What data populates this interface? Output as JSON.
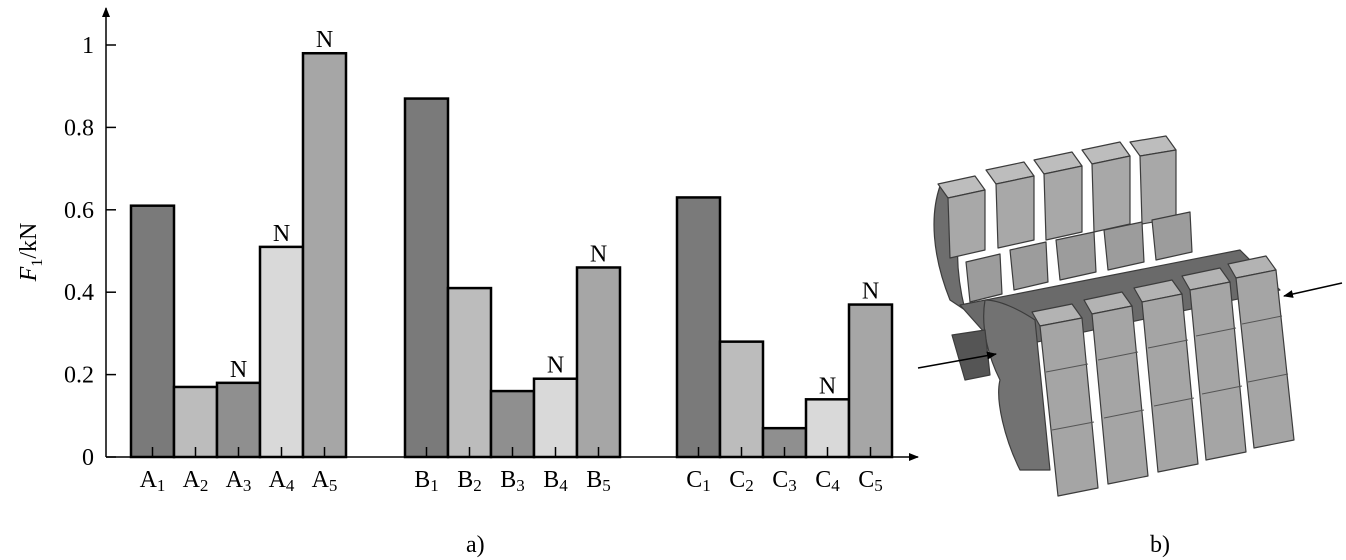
{
  "chart_data": {
    "type": "bar",
    "ylabel": {
      "main": "F",
      "sub": "1",
      "unit": "/kN"
    },
    "ylim": [
      0,
      1.0
    ],
    "yticks": [
      "0",
      "0.2",
      "0.4",
      "0.6",
      "0.8",
      "1"
    ],
    "grid": false,
    "groups": [
      {
        "bars": [
          {
            "label": "A",
            "sub": "1",
            "value": 0.61,
            "color": "#7a7a7a",
            "marker": ""
          },
          {
            "label": "A",
            "sub": "2",
            "value": 0.17,
            "color": "#bcbcbc",
            "marker": ""
          },
          {
            "label": "A",
            "sub": "3",
            "value": 0.18,
            "color": "#8f8f8f",
            "marker": "N"
          },
          {
            "label": "A",
            "sub": "4",
            "value": 0.51,
            "color": "#d9d9d9",
            "marker": "N"
          },
          {
            "label": "A",
            "sub": "5",
            "value": 0.98,
            "color": "#a6a6a6",
            "marker": "N"
          }
        ]
      },
      {
        "bars": [
          {
            "label": "B",
            "sub": "1",
            "value": 0.87,
            "color": "#7a7a7a",
            "marker": ""
          },
          {
            "label": "B",
            "sub": "2",
            "value": 0.41,
            "color": "#bcbcbc",
            "marker": ""
          },
          {
            "label": "B",
            "sub": "3",
            "value": 0.16,
            "color": "#8f8f8f",
            "marker": ""
          },
          {
            "label": "B",
            "sub": "4",
            "value": 0.19,
            "color": "#d9d9d9",
            "marker": "N"
          },
          {
            "label": "B",
            "sub": "5",
            "value": 0.46,
            "color": "#a6a6a6",
            "marker": "N"
          }
        ]
      },
      {
        "bars": [
          {
            "label": "C",
            "sub": "1",
            "value": 0.63,
            "color": "#7a7a7a",
            "marker": ""
          },
          {
            "label": "C",
            "sub": "2",
            "value": 0.28,
            "color": "#bcbcbc",
            "marker": ""
          },
          {
            "label": "C",
            "sub": "3",
            "value": 0.07,
            "color": "#8f8f8f",
            "marker": ""
          },
          {
            "label": "C",
            "sub": "4",
            "value": 0.14,
            "color": "#d9d9d9",
            "marker": "N"
          },
          {
            "label": "C",
            "sub": "5",
            "value": 0.37,
            "color": "#a6a6a6",
            "marker": "N"
          }
        ]
      }
    ]
  },
  "captions": {
    "a": "a)",
    "b": "b)"
  }
}
